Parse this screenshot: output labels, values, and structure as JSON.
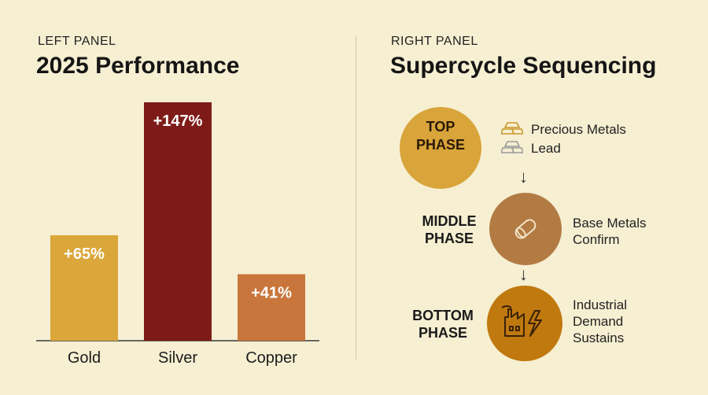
{
  "left_panel": {
    "label": "LEFT PANEL",
    "title": "2025 Performance"
  },
  "right_panel": {
    "label": "RIGHT PANEL",
    "title": "Supercycle Sequencing",
    "phases": [
      {
        "name_line1": "TOP",
        "name_line2": "PHASE",
        "items": [
          "Precious Metals",
          "Lead"
        ],
        "color": "#d9a43a"
      },
      {
        "name_line1": "MIDDLE",
        "name_line2": "PHASE",
        "items": [
          "Base Metals",
          "Confirm"
        ],
        "color": "#b27b43"
      },
      {
        "name_line1": "BOTTOM",
        "name_line2": "PHASE",
        "items": [
          "Industrial",
          "Demand",
          "Sustains"
        ],
        "color": "#c0790f"
      }
    ],
    "arrow_glyph": "↓"
  },
  "chart_data": {
    "type": "bar",
    "categories": [
      "Gold",
      "Silver",
      "Copper"
    ],
    "values": [
      65,
      147,
      41
    ],
    "data_labels": [
      "+65%",
      "+147%",
      "+41%"
    ],
    "colors": [
      "#dba63a",
      "#7e1b18",
      "#c9763c"
    ],
    "ylim": [
      0,
      160
    ],
    "grid": false
  }
}
